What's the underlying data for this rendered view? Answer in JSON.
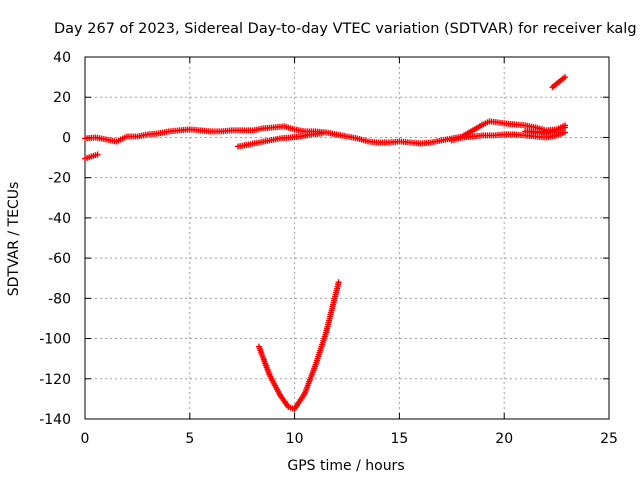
{
  "chart_data": {
    "type": "scatter",
    "title": "Day 267 of 2023, Sidereal Day-to-day VTEC variation (SDTVAR) for receiver kalg",
    "xlabel": "GPS time / hours",
    "ylabel": "SDTVAR / TECUs",
    "xlim": [
      0,
      25
    ],
    "ylim": [
      -140,
      40
    ],
    "xticks": [
      0,
      5,
      10,
      15,
      20,
      25
    ],
    "yticks": [
      40,
      20,
      0,
      -20,
      -40,
      -60,
      -80,
      -100,
      -120,
      -140
    ],
    "grid": true,
    "marker_color": "#ff0000",
    "series": [
      {
        "name": "start-negative",
        "points": [
          [
            0.0,
            -10.5
          ],
          [
            0.6,
            -8.5
          ]
        ]
      },
      {
        "name": "main-trace",
        "points": [
          [
            0.0,
            -0.5
          ],
          [
            0.5,
            0.0
          ],
          [
            1.0,
            -1.0
          ],
          [
            1.5,
            -2.0
          ],
          [
            2.0,
            0.5
          ],
          [
            2.5,
            0.5
          ],
          [
            3.0,
            1.5
          ],
          [
            3.5,
            2.0
          ],
          [
            4.0,
            3.0
          ],
          [
            4.5,
            3.5
          ],
          [
            5.0,
            4.0
          ],
          [
            5.5,
            3.5
          ],
          [
            6.0,
            3.0
          ],
          [
            6.5,
            3.0
          ],
          [
            7.0,
            3.5
          ],
          [
            7.5,
            3.5
          ],
          [
            8.0,
            3.5
          ],
          [
            8.5,
            4.5
          ],
          [
            9.0,
            5.0
          ],
          [
            9.5,
            5.5
          ],
          [
            10.0,
            4.0
          ],
          [
            10.5,
            3.0
          ],
          [
            11.0,
            3.0
          ],
          [
            11.5,
            2.5
          ],
          [
            12.0,
            1.5
          ],
          [
            12.5,
            0.5
          ],
          [
            13.0,
            -0.5
          ],
          [
            13.5,
            -2.0
          ],
          [
            14.0,
            -2.5
          ],
          [
            14.5,
            -2.5
          ],
          [
            15.0,
            -2.0
          ],
          [
            15.5,
            -2.5
          ],
          [
            16.0,
            -3.0
          ],
          [
            16.5,
            -2.5
          ],
          [
            17.0,
            -1.5
          ],
          [
            17.5,
            -0.5
          ],
          [
            18.0,
            0.5
          ],
          [
            18.5,
            3.5
          ],
          [
            19.0,
            6.5
          ],
          [
            19.3,
            8.0
          ],
          [
            19.7,
            7.5
          ],
          [
            20.0,
            7.0
          ],
          [
            20.5,
            6.5
          ],
          [
            21.0,
            6.0
          ],
          [
            21.5,
            5.0
          ],
          [
            22.0,
            3.5
          ],
          [
            22.5,
            4.0
          ],
          [
            22.9,
            6.0
          ]
        ]
      },
      {
        "name": "lower-branch",
        "points": [
          [
            7.3,
            -4.5
          ],
          [
            7.8,
            -3.5
          ],
          [
            8.3,
            -2.5
          ],
          [
            8.8,
            -1.5
          ],
          [
            9.3,
            -0.5
          ],
          [
            9.8,
            0.0
          ],
          [
            10.3,
            0.5
          ],
          [
            10.8,
            1.5
          ],
          [
            11.3,
            2.0
          ]
        ]
      },
      {
        "name": "tail-spread",
        "points": [
          [
            17.5,
            -1.5
          ],
          [
            18.0,
            0.0
          ],
          [
            18.5,
            0.5
          ],
          [
            19.0,
            1.0
          ],
          [
            19.5,
            1.0
          ],
          [
            20.0,
            1.5
          ],
          [
            20.5,
            1.5
          ],
          [
            21.0,
            1.0
          ],
          [
            21.5,
            0.5
          ],
          [
            22.0,
            0.0
          ],
          [
            22.5,
            1.0
          ],
          [
            22.9,
            2.5
          ],
          [
            21.0,
            3.0
          ],
          [
            22.0,
            2.0
          ],
          [
            22.9,
            5.0
          ]
        ]
      },
      {
        "name": "high-excursion",
        "points": [
          [
            22.3,
            25.0
          ],
          [
            22.9,
            30.0
          ]
        ]
      },
      {
        "name": "v-dip",
        "points": [
          [
            8.3,
            -104
          ],
          [
            8.8,
            -118
          ],
          [
            9.3,
            -128
          ],
          [
            9.7,
            -134
          ],
          [
            10.0,
            -135
          ],
          [
            10.5,
            -127
          ],
          [
            11.0,
            -113
          ],
          [
            11.5,
            -97
          ],
          [
            12.1,
            -72
          ]
        ]
      }
    ]
  }
}
